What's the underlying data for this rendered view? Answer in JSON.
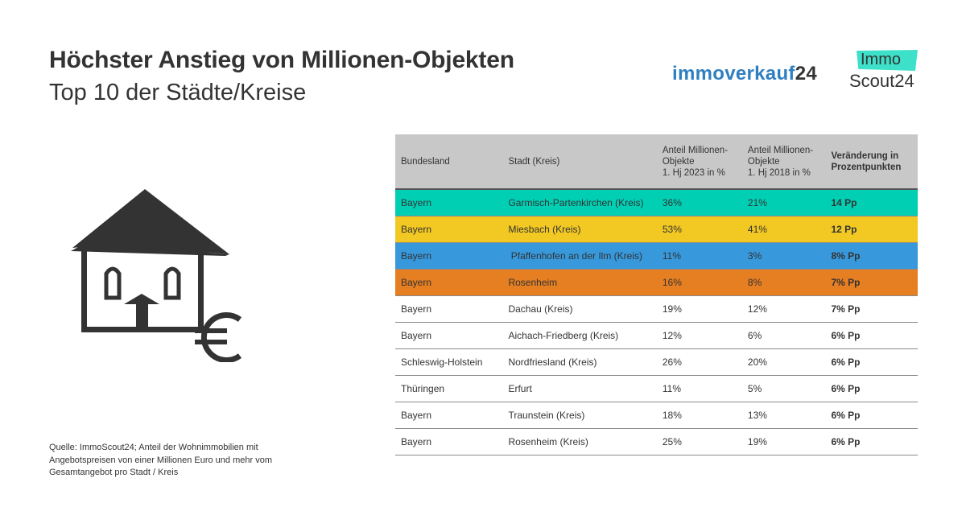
{
  "header": {
    "title": "Höchster Anstieg von Millionen-Objekten",
    "subtitle": "Top 10 der Städte/Kreise"
  },
  "logos": {
    "immoverkauf_text": "immoverkauf",
    "immoverkauf_num": "24",
    "immoscout_immo": "Immo",
    "immoscout_scout": "Scout24",
    "immoverkauf_color": "#2f7fc1",
    "immoscout_color": "#3de0c8"
  },
  "illustration": {
    "icon": "house-euro-icon"
  },
  "source": "Quelle: ImmoScout24; Anteil der Wohnimmobilien mit Angebotspreisen von einer Millionen Euro und mehr vom Gesamtangebot pro Stadt / Kreis",
  "chart_data": {
    "type": "table",
    "title": "Höchster Anstieg von Millionen-Objekten",
    "subtitle": "Top 10 der Städte/Kreise",
    "columns": [
      "Bundesland",
      "Stadt (Kreis)",
      "Anteil Millionen-Objekte 1. Hj 2023 in %",
      "Anteil Millionen-Objekte 1. Hj 2018 in %",
      "Veränderung in Prozentpunkten"
    ],
    "column_lines": [
      [
        "Bundesland"
      ],
      [
        "Stadt (Kreis)"
      ],
      [
        "Anteil Millionen-",
        "Objekte",
        "1. Hj 2023 in %"
      ],
      [
        "Anteil Millionen-",
        "Objekte",
        "1. Hj 2018 in %"
      ],
      [
        "Veränderung in",
        "Prozentpunkten"
      ]
    ],
    "rows": [
      {
        "bundesland": "Bayern",
        "stadt": "Garmisch-Partenkirchen (Kreis)",
        "y2023": "36%",
        "y2018": "21%",
        "change": "14 Pp",
        "color": "#00cfb4"
      },
      {
        "bundesland": "Bayern",
        "stadt": "Miesbach (Kreis)",
        "y2023": "53%",
        "y2018": "41%",
        "change": "12 Pp",
        "color": "#f2c823"
      },
      {
        "bundesland": "Bayern",
        "stadt": " Pfaffenhofen an der Ilm (Kreis)",
        "y2023": "11%",
        "y2018": "3%",
        "change": "8% Pp",
        "color": "#3798db"
      },
      {
        "bundesland": "Bayern",
        "stadt": "Rosenheim",
        "y2023": "16%",
        "y2018": "8%",
        "change": "7% Pp",
        "color": "#e67e22"
      },
      {
        "bundesland": "Bayern",
        "stadt": "Dachau (Kreis)",
        "y2023": "19%",
        "y2018": "12%",
        "change": "7% Pp",
        "color": "#ffffff"
      },
      {
        "bundesland": "Bayern",
        "stadt": "Aichach-Friedberg (Kreis)",
        "y2023": "12%",
        "y2018": "6%",
        "change": "6% Pp",
        "color": "#ffffff"
      },
      {
        "bundesland": "Schleswig-Holstein",
        "stadt": "Nordfriesland (Kreis)",
        "y2023": "26%",
        "y2018": "20%",
        "change": "6% Pp",
        "color": "#ffffff"
      },
      {
        "bundesland": "Thüringen",
        "stadt": "Erfurt",
        "y2023": "11%",
        "y2018": "5%",
        "change": "6% Pp",
        "color": "#ffffff"
      },
      {
        "bundesland": "Bayern",
        "stadt": "Traunstein (Kreis)",
        "y2023": "18%",
        "y2018": "13%",
        "change": "6% Pp",
        "color": "#ffffff"
      },
      {
        "bundesland": "Bayern",
        "stadt": "Rosenheim (Kreis)",
        "y2023": "25%",
        "y2018": "19%",
        "change": "6% Pp",
        "color": "#ffffff"
      }
    ]
  }
}
